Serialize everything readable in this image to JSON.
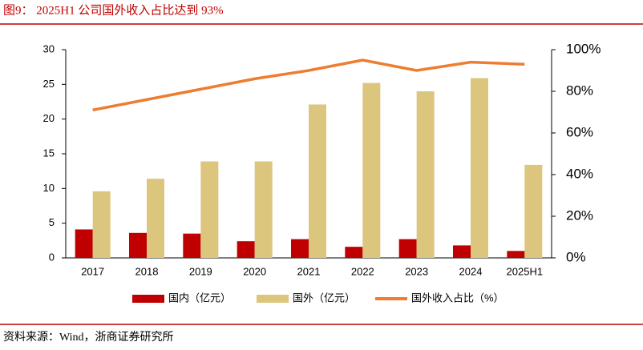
{
  "chart_data": {
    "type": "bar-line",
    "title": "图9：  2025H1 公司国外收入占比达到 93%",
    "source": "资料来源：Wind，浙商证券研究所",
    "categories": [
      "2017",
      "2018",
      "2019",
      "2020",
      "2021",
      "2022",
      "2023",
      "2024",
      "2025H1"
    ],
    "series": [
      {
        "name": "国内（亿元）",
        "color": "#c00000",
        "type": "bar",
        "values": [
          4.1,
          3.6,
          3.5,
          2.4,
          2.7,
          1.6,
          2.7,
          1.8,
          1.0
        ]
      },
      {
        "name": "国外（亿元）",
        "color": "#dcc57c",
        "type": "bar",
        "values": [
          9.6,
          11.4,
          13.9,
          13.9,
          22.1,
          25.2,
          24.0,
          25.9,
          13.4
        ]
      },
      {
        "name": "国外收入占比（%）",
        "color": "#ed7d31",
        "type": "line",
        "axis": "y2",
        "values": [
          71,
          76,
          81,
          86,
          90,
          95,
          90,
          94,
          93
        ]
      }
    ],
    "ylim": [
      0,
      30
    ],
    "yticks": [
      0,
      5,
      10,
      15,
      20,
      25,
      30
    ],
    "y2lim": [
      0,
      100
    ],
    "y2ticks": [
      {
        "value": 0,
        "label": "0%"
      },
      {
        "value": 20,
        "label": "20%"
      },
      {
        "value": 40,
        "label": "40%"
      },
      {
        "value": 60,
        "label": "60%"
      },
      {
        "value": 80,
        "label": "80%"
      },
      {
        "value": 100,
        "label": "100%"
      }
    ],
    "grid": false
  }
}
